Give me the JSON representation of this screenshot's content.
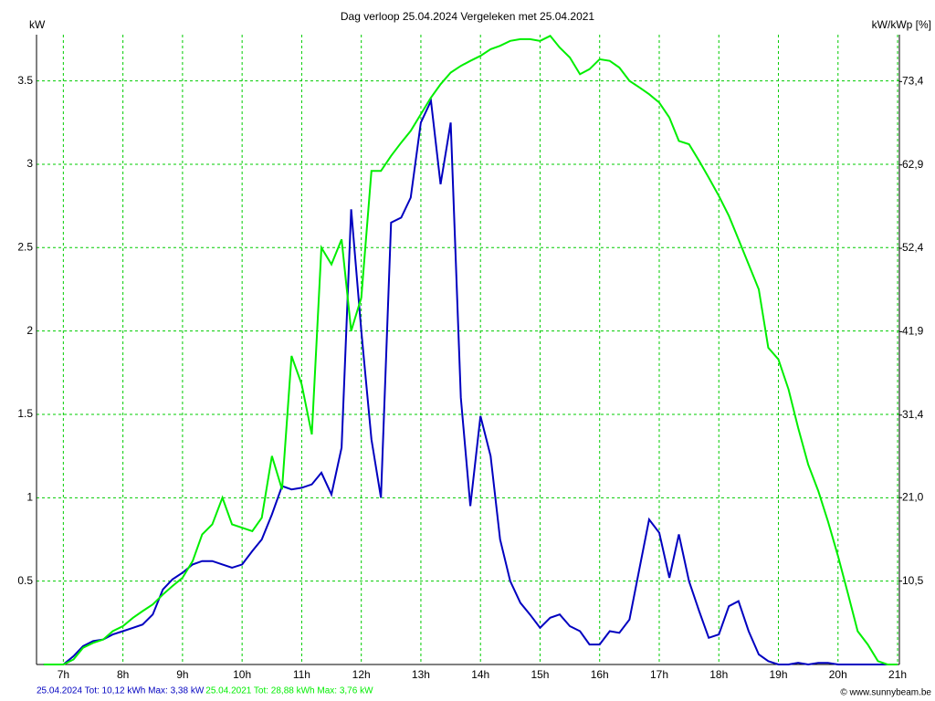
{
  "chart_data": {
    "type": "line",
    "title": "Dag  verloop 25.04.2024   Vergeleken met 25.04.2021",
    "y_label": "kW",
    "y2_label": "kW/kWp [%]",
    "credit": "© www.sunnybeam.be",
    "grid": true,
    "grid_color": "#00cc00",
    "xlim": [
      6.55,
      21.03
    ],
    "xticks": [
      {
        "value": 7,
        "label": "7h"
      },
      {
        "value": 8,
        "label": "8h"
      },
      {
        "value": 9,
        "label": "9h"
      },
      {
        "value": 10,
        "label": "10h"
      },
      {
        "value": 11,
        "label": "11h"
      },
      {
        "value": 12,
        "label": "12h"
      },
      {
        "value": 13,
        "label": "13h"
      },
      {
        "value": 14,
        "label": "14h"
      },
      {
        "value": 15,
        "label": "15h"
      },
      {
        "value": 16,
        "label": "16h"
      },
      {
        "value": 17,
        "label": "17h"
      },
      {
        "value": 18,
        "label": "18h"
      },
      {
        "value": 19,
        "label": "19h"
      },
      {
        "value": 20,
        "label": "20h"
      },
      {
        "value": 21,
        "label": "21h"
      }
    ],
    "ylim": [
      0,
      3.777
    ],
    "yticks": [
      0.5,
      1,
      1.5,
      2,
      2.5,
      3,
      3.5
    ],
    "y2lim": [
      0,
      79.3
    ],
    "y2ticks": [
      {
        "value": 10.5,
        "label": "10,5"
      },
      {
        "value": 21.0,
        "label": "21,0"
      },
      {
        "value": 31.4,
        "label": "31,4"
      },
      {
        "value": 41.9,
        "label": "41,9"
      },
      {
        "value": 52.4,
        "label": "52,4"
      },
      {
        "value": 62.9,
        "label": "62,9"
      },
      {
        "value": 73.4,
        "label": "73,4"
      }
    ],
    "x": [
      6.67,
      6.83,
      7,
      7.17,
      7.33,
      7.5,
      7.67,
      7.83,
      8,
      8.17,
      8.33,
      8.5,
      8.67,
      8.83,
      9,
      9.17,
      9.33,
      9.5,
      9.67,
      9.83,
      10,
      10.17,
      10.33,
      10.5,
      10.67,
      10.83,
      11,
      11.17,
      11.33,
      11.5,
      11.67,
      11.83,
      12,
      12.17,
      12.33,
      12.5,
      12.67,
      12.83,
      13,
      13.17,
      13.33,
      13.5,
      13.67,
      13.83,
      14,
      14.17,
      14.33,
      14.5,
      14.67,
      14.83,
      15,
      15.17,
      15.33,
      15.5,
      15.67,
      15.83,
      16,
      16.17,
      16.33,
      16.5,
      16.67,
      16.83,
      17,
      17.17,
      17.33,
      17.5,
      17.67,
      17.83,
      18,
      18.17,
      18.33,
      18.5,
      18.67,
      18.83,
      19,
      19.17,
      19.33,
      19.5,
      19.67,
      19.83,
      20,
      20.17,
      20.33,
      20.5,
      20.67,
      20.83,
      21
    ],
    "series": [
      {
        "name": "25.04.2024 Tot: 10,12 kWh Max: 3,38 kW",
        "color": "#0000c0",
        "values": [
          0,
          0,
          0,
          0.05,
          0.11,
          0.14,
          0.15,
          0.18,
          0.2,
          0.22,
          0.24,
          0.3,
          0.45,
          0.51,
          0.55,
          0.6,
          0.62,
          0.62,
          0.6,
          0.58,
          0.6,
          0.68,
          0.75,
          0.9,
          1.07,
          1.05,
          1.06,
          1.08,
          1.15,
          1.02,
          1.3,
          2.73,
          2.0,
          1.35,
          1.0,
          2.65,
          2.68,
          2.8,
          3.25,
          3.38,
          2.88,
          3.25,
          1.6,
          0.95,
          1.49,
          1.25,
          0.75,
          0.5,
          0.37,
          0.3,
          0.22,
          0.28,
          0.3,
          0.23,
          0.2,
          0.12,
          0.12,
          0.2,
          0.19,
          0.27,
          0.58,
          0.87,
          0.79,
          0.52,
          0.78,
          0.5,
          0.32,
          0.16,
          0.18,
          0.35,
          0.38,
          0.2,
          0.06,
          0.02,
          0,
          0,
          0.01,
          0,
          0.01,
          0.01,
          0,
          0,
          0,
          0,
          0,
          0,
          0
        ]
      },
      {
        "name": "25.04.2021 Tot: 28,88 kWh Max: 3,76 kW",
        "color": "#00ee00",
        "values": [
          0,
          0,
          0,
          0.03,
          0.1,
          0.13,
          0.15,
          0.2,
          0.23,
          0.28,
          0.32,
          0.36,
          0.42,
          0.47,
          0.52,
          0.62,
          0.78,
          0.84,
          1.0,
          0.84,
          0.82,
          0.8,
          0.88,
          1.25,
          1.05,
          1.85,
          1.68,
          1.38,
          2.5,
          2.4,
          2.55,
          2.0,
          2.2,
          2.96,
          2.96,
          3.05,
          3.13,
          3.2,
          3.3,
          3.4,
          3.48,
          3.55,
          3.59,
          3.62,
          3.65,
          3.69,
          3.71,
          3.74,
          3.75,
          3.75,
          3.74,
          3.77,
          3.7,
          3.64,
          3.54,
          3.57,
          3.63,
          3.62,
          3.58,
          3.5,
          3.46,
          3.42,
          3.37,
          3.28,
          3.14,
          3.12,
          3.02,
          2.92,
          2.81,
          2.69,
          2.55,
          2.4,
          2.25,
          1.9,
          1.83,
          1.65,
          1.42,
          1.2,
          1.04,
          0.86,
          0.65,
          0.42,
          0.2,
          0.12,
          0.02,
          0,
          0
        ]
      }
    ]
  }
}
